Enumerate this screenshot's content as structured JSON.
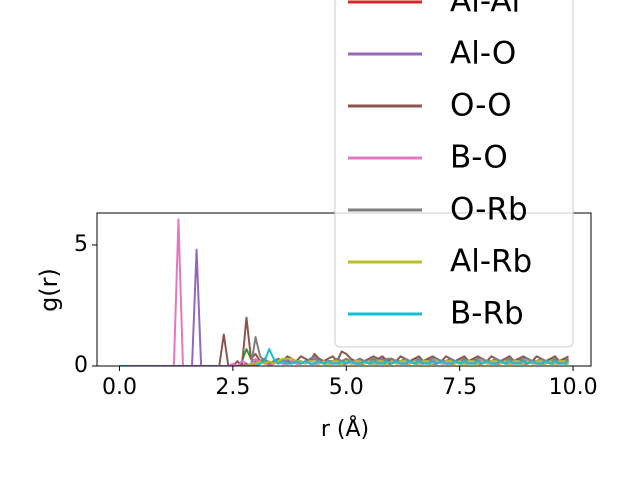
{
  "chart_data": {
    "type": "line",
    "xlabel": "r (Å)",
    "ylabel": "g(r)",
    "xlim": [
      -0.495,
      10.395
    ],
    "ylim": [
      0,
      6.32
    ],
    "xticks": [
      {
        "value": 0,
        "label": "0.0"
      },
      2.5,
      {
        "value": 5,
        "label": "5.0"
      },
      7.5,
      {
        "value": 10,
        "label": "10.0"
      }
    ],
    "yticks": [
      0,
      5
    ],
    "legend": "upper right",
    "x": [
      0,
      0.1,
      0.2,
      0.3,
      0.4,
      0.5,
      0.6,
      0.7,
      0.8,
      0.9,
      1,
      1.1,
      1.2,
      1.3,
      1.4,
      1.5,
      1.6,
      1.7,
      1.8,
      1.9,
      2,
      2.1,
      2.2,
      2.3,
      2.4,
      2.5,
      2.6,
      2.7,
      2.8,
      2.9,
      3,
      3.1,
      3.2,
      3.3,
      3.4,
      3.5,
      3.6,
      3.7,
      3.8,
      3.9,
      4,
      4.1,
      4.2,
      4.3,
      4.4,
      4.5,
      4.6,
      4.7,
      4.8,
      4.9,
      5,
      5.1,
      5.2,
      5.3,
      5.4,
      5.5,
      5.6,
      5.7,
      5.8,
      5.9,
      6,
      6.1,
      6.2,
      6.3,
      6.4,
      6.5,
      6.6,
      6.7,
      6.8,
      6.9,
      7,
      7.1,
      7.2,
      7.3,
      7.4,
      7.5,
      7.6,
      7.7,
      7.8,
      7.9,
      8,
      8.1,
      8.2,
      8.3,
      8.4,
      8.5,
      8.6,
      8.7,
      8.8,
      8.9,
      9,
      9.1,
      9.2,
      9.3,
      9.4,
      9.5,
      9.6,
      9.7,
      9.8,
      9.9
    ],
    "series": [
      {
        "color": "#2ca02c",
        "values": [
          0,
          0,
          0,
          0,
          0,
          0,
          0,
          0,
          0,
          0,
          0,
          0,
          0,
          0,
          0,
          0,
          0,
          0,
          0,
          0,
          0,
          0,
          0,
          0,
          0,
          0,
          0,
          0.2,
          0.7,
          0.3,
          0.2,
          0.1,
          0.2,
          0.1,
          0.1,
          0.2,
          0.1,
          0.1,
          0.2,
          0.1,
          0.1,
          0.2,
          0.1,
          0.1,
          0.2,
          0.1,
          0.1,
          0.2,
          0.1,
          0.1,
          0.1,
          0.2,
          0.1,
          0.1,
          0.2,
          0.1,
          0.1,
          0.2,
          0.1,
          0.1,
          0.1,
          0.2,
          0.1,
          0.1,
          0.2,
          0.1,
          0.1,
          0.2,
          0.1,
          0.1,
          0.1,
          0.2,
          0.1,
          0.1,
          0.2,
          0.1,
          0.1,
          0.2,
          0.1,
          0.1,
          0.1,
          0.2,
          0.1,
          0.1,
          0.2,
          0.1,
          0.1,
          0.2,
          0.1,
          0.1,
          0.1,
          0.2,
          0.1,
          0.1,
          0.2,
          0.1,
          0.1,
          0.2,
          0.1,
          0.1
        ]
      },
      {
        "name": "Al-Al",
        "color": "#d62728",
        "values": [
          0,
          0,
          0,
          0,
          0,
          0,
          0,
          0,
          0,
          0,
          0,
          0,
          0,
          0,
          0,
          0,
          0,
          0,
          0,
          0,
          0,
          0,
          0,
          0,
          0,
          0,
          0,
          0,
          0,
          0,
          0.1,
          0.2,
          0.1,
          0.1,
          0.1,
          0.2,
          0.1,
          0.1,
          0.2,
          0.1,
          0.1,
          0.2,
          0.1,
          0.1,
          0.1,
          0.2,
          0.1,
          0.1,
          0.2,
          0.1,
          0.1,
          0.2,
          0.1,
          0.1,
          0.1,
          0.2,
          0.1,
          0.1,
          0.2,
          0.1,
          0.1,
          0.2,
          0.1,
          0.1,
          0.1,
          0.2,
          0.1,
          0.1,
          0.2,
          0.1,
          0.1,
          0.2,
          0.1,
          0.1,
          0.1,
          0.2,
          0.1,
          0.1,
          0.2,
          0.1,
          0.1,
          0.2,
          0.1,
          0.1,
          0.1,
          0.2,
          0.1,
          0.1,
          0.2,
          0.1,
          0.1,
          0.2,
          0.1,
          0.1,
          0.1,
          0.2,
          0.1,
          0.1,
          0.2,
          0.1
        ]
      },
      {
        "name": "Al-O",
        "color": "#9467bd",
        "values": [
          0,
          0,
          0,
          0,
          0,
          0,
          0,
          0,
          0,
          0,
          0,
          0,
          0,
          0,
          0,
          0,
          0,
          4.8,
          0,
          0,
          0,
          0,
          0,
          0,
          0,
          0,
          0,
          0,
          0.1,
          0,
          0.2,
          0.1,
          0.3,
          0.1,
          0.2,
          0.1,
          0.2,
          0.3,
          0.1,
          0.2,
          0.2,
          0.1,
          0.2,
          0.3,
          0.2,
          0.1,
          0.2,
          0.2,
          0.3,
          0.2,
          0.2,
          0.1,
          0.2,
          0.3,
          0.2,
          0.1,
          0.2,
          0.2,
          0.3,
          0.2,
          0.2,
          0.1,
          0.2,
          0.3,
          0.2,
          0.1,
          0.2,
          0.2,
          0.3,
          0.2,
          0.2,
          0.1,
          0.2,
          0.3,
          0.2,
          0.1,
          0.2,
          0.2,
          0.3,
          0.2,
          0.2,
          0.1,
          0.2,
          0.3,
          0.2,
          0.1,
          0.2,
          0.2,
          0.3,
          0.2,
          0.2,
          0.1,
          0.2,
          0.3,
          0.2,
          0.1,
          0.2,
          0.2,
          0.3,
          0.2
        ]
      },
      {
        "name": "O-O",
        "color": "#8c564b",
        "values": [
          0,
          0,
          0,
          0,
          0,
          0,
          0,
          0,
          0,
          0,
          0,
          0,
          0,
          0,
          0,
          0,
          0,
          0,
          0,
          0,
          0,
          0,
          0,
          1.3,
          0,
          0,
          0.2,
          0,
          2.0,
          0.3,
          0.5,
          0.2,
          0.3,
          0.1,
          0.2,
          0.3,
          0.2,
          0.4,
          0.3,
          0.2,
          0.4,
          0.3,
          0.2,
          0.5,
          0.3,
          0.2,
          0.3,
          0.4,
          0.2,
          0.6,
          0.5,
          0.3,
          0.2,
          0.3,
          0.2,
          0.3,
          0.4,
          0.3,
          0.4,
          0.2,
          0.3,
          0.2,
          0.4,
          0.3,
          0.2,
          0.3,
          0.4,
          0.2,
          0.3,
          0.4,
          0.3,
          0.2,
          0.4,
          0.3,
          0.2,
          0.3,
          0.4,
          0.2,
          0.3,
          0.4,
          0.3,
          0.2,
          0.4,
          0.3,
          0.2,
          0.3,
          0.4,
          0.2,
          0.3,
          0.4,
          0.3,
          0.2,
          0.4,
          0.3,
          0.2,
          0.3,
          0.4,
          0.2,
          0.3,
          0.4
        ]
      },
      {
        "name": "B-O",
        "color": "#e377c2",
        "values": [
          0,
          0,
          0,
          0,
          0,
          0,
          0,
          0,
          0,
          0,
          0,
          0,
          0,
          6.05,
          0,
          0,
          0,
          0,
          0,
          0,
          0,
          0,
          0,
          0,
          0,
          0.1,
          0,
          0.2,
          0.1,
          0,
          0.3,
          0.1,
          0.2,
          0,
          0.1,
          0.2,
          0.1,
          0.1,
          0.2,
          0.1,
          0.1,
          0.2,
          0.1,
          0.1,
          0.1,
          0.2,
          0.1,
          0.1,
          0.2,
          0.1,
          0.2,
          0.1,
          0.1,
          0.2,
          0.1,
          0.2,
          0.1,
          0.1,
          0.2,
          0.1,
          0.2,
          0.1,
          0.1,
          0.2,
          0.1,
          0.2,
          0.1,
          0.1,
          0.2,
          0.1,
          0.2,
          0.1,
          0.1,
          0.2,
          0.1,
          0.2,
          0.1,
          0.1,
          0.2,
          0.1,
          0.2,
          0.1,
          0.1,
          0.2,
          0.1,
          0.2,
          0.1,
          0.1,
          0.2,
          0.1,
          0.2,
          0.1,
          0.1,
          0.2,
          0.1,
          0.2,
          0.1,
          0.1,
          0.2,
          0.1
        ]
      },
      {
        "name": "O-Rb",
        "color": "#7f7f7f",
        "values": [
          0,
          0,
          0,
          0,
          0,
          0,
          0,
          0,
          0,
          0,
          0,
          0,
          0,
          0,
          0,
          0,
          0,
          0,
          0,
          0,
          0,
          0,
          0,
          0,
          0,
          0,
          0,
          0,
          0.1,
          0,
          1.2,
          0.4,
          0.2,
          0.1,
          0.2,
          0.3,
          0.2,
          0.2,
          0.1,
          0.2,
          0.2,
          0.1,
          0.3,
          0.4,
          0.2,
          0.1,
          0.2,
          0.2,
          0.3,
          0.2,
          0.3,
          0.2,
          0.2,
          0.3,
          0.2,
          0.2,
          0.3,
          0.2,
          0.2,
          0.3,
          0.3,
          0.2,
          0.2,
          0.3,
          0.2,
          0.2,
          0.3,
          0.2,
          0.2,
          0.3,
          0.3,
          0.2,
          0.2,
          0.3,
          0.2,
          0.2,
          0.3,
          0.2,
          0.2,
          0.3,
          0.3,
          0.2,
          0.2,
          0.3,
          0.2,
          0.2,
          0.3,
          0.2,
          0.2,
          0.3,
          0.3,
          0.2,
          0.2,
          0.3,
          0.2,
          0.2,
          0.3,
          0.2,
          0.2,
          0.3
        ]
      },
      {
        "name": "Al-Rb",
        "color": "#bcbd22",
        "values": [
          0,
          0,
          0,
          0,
          0,
          0,
          0,
          0,
          0,
          0,
          0,
          0,
          0,
          0,
          0,
          0,
          0,
          0,
          0,
          0,
          0,
          0,
          0,
          0,
          0,
          0,
          0,
          0,
          0,
          0.1,
          0.1,
          0.2,
          0.1,
          0.2,
          0.1,
          0.2,
          0.3,
          0.3,
          0.3,
          0.2,
          0.2,
          0.1,
          0.2,
          0.2,
          0.1,
          0.2,
          0.1,
          0.2,
          0.2,
          0.1,
          0.2,
          0.1,
          0.2,
          0.2,
          0.1,
          0.2,
          0.1,
          0.2,
          0.2,
          0.1,
          0.2,
          0.1,
          0.2,
          0.2,
          0.1,
          0.2,
          0.1,
          0.2,
          0.2,
          0.1,
          0.2,
          0.1,
          0.2,
          0.2,
          0.1,
          0.2,
          0.1,
          0.2,
          0.2,
          0.1,
          0.2,
          0.1,
          0.2,
          0.2,
          0.1,
          0.2,
          0.1,
          0.2,
          0.2,
          0.1,
          0.2,
          0.1,
          0.2,
          0.2,
          0.1,
          0.2,
          0.1,
          0.2,
          0.2,
          0.1
        ]
      },
      {
        "name": "B-Rb",
        "color": "#17becf",
        "values": [
          0,
          0,
          0,
          0,
          0,
          0,
          0,
          0,
          0,
          0,
          0,
          0,
          0,
          0,
          0,
          0,
          0,
          0,
          0,
          0,
          0,
          0,
          0,
          0,
          0,
          0,
          0,
          0,
          0,
          0,
          0,
          0.1,
          0.2,
          0.7,
          0.3,
          0.1,
          0.2,
          0.1,
          0.1,
          0.2,
          0.1,
          0.2,
          0.1,
          0.1,
          0.2,
          0.1,
          0.2,
          0.1,
          0.1,
          0.2,
          0.1,
          0.2,
          0.1,
          0.1,
          0.2,
          0.1,
          0.2,
          0.1,
          0.1,
          0.2,
          0.1,
          0.2,
          0.1,
          0.1,
          0.2,
          0.1,
          0.2,
          0.1,
          0.1,
          0.2,
          0.1,
          0.2,
          0.1,
          0.1,
          0.2,
          0.1,
          0.2,
          0.1,
          0.1,
          0.2,
          0.1,
          0.2,
          0.1,
          0.1,
          0.2,
          0.1,
          0.2,
          0.1,
          0.1,
          0.2,
          0.1,
          0.2,
          0.1,
          0.1,
          0.2,
          0.1,
          0.2,
          0.1,
          0.1,
          0.2
        ]
      }
    ]
  }
}
